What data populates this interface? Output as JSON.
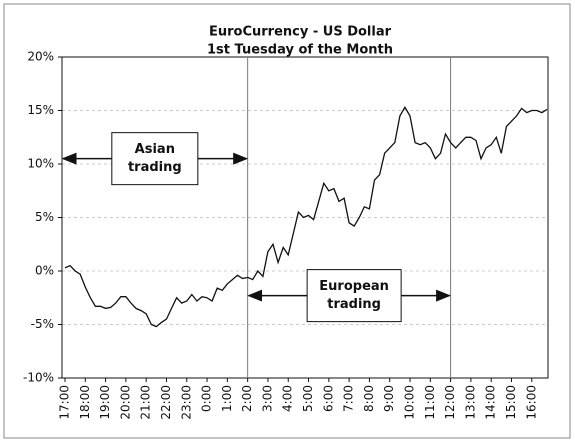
{
  "chart_data": {
    "type": "line",
    "title": "EuroCurrency - US Dollar",
    "subtitle": "1st Tuesday of the Month",
    "color": "#111111",
    "grid": true,
    "categories": [
      "17:00",
      null,
      null,
      null,
      "18:00",
      null,
      null,
      null,
      "19:00",
      null,
      null,
      null,
      "20:00",
      null,
      null,
      null,
      "21:00",
      null,
      null,
      null,
      "22:00",
      null,
      null,
      null,
      "23:00",
      null,
      null,
      null,
      "0:00",
      null,
      null,
      null,
      "1:00",
      null,
      null,
      null,
      "2:00",
      null,
      null,
      null,
      "3:00",
      null,
      null,
      null,
      "4:00",
      null,
      null,
      null,
      "5:00",
      null,
      null,
      null,
      "6:00",
      null,
      null,
      null,
      "7:00",
      null,
      null,
      null,
      "8:00",
      null,
      null,
      null,
      "9:00",
      null,
      null,
      null,
      "10:00",
      null,
      null,
      null,
      "11:00",
      null,
      null,
      null,
      "12:00",
      null,
      null,
      null,
      "13:00",
      null,
      null,
      null,
      "14:00",
      null,
      null,
      null,
      "15:00",
      null,
      null,
      null,
      "16:00",
      null,
      null,
      null
    ],
    "values": [
      0.3,
      0.5,
      0,
      -0.3,
      -1.5,
      -2.5,
      -3.3,
      -3.3,
      -3.5,
      -3.4,
      -3.0,
      -2.4,
      -2.4,
      -3.0,
      -3.5,
      -3.7,
      -4.0,
      -5.0,
      -5.2,
      -4.8,
      -4.5,
      -3.5,
      -2.5,
      -3.0,
      -2.8,
      -2.2,
      -2.8,
      -2.4,
      -2.5,
      -2.8,
      -1.6,
      -1.8,
      -1.2,
      -0.8,
      -0.4,
      -0.7,
      -0.6,
      -0.8,
      0.0,
      -0.5,
      1.8,
      2.5,
      0.8,
      2.2,
      1.5,
      3.5,
      5.5,
      5.0,
      5.2,
      4.8,
      6.5,
      8.2,
      7.5,
      7.7,
      6.5,
      6.8,
      4.5,
      4.2,
      5.0,
      6.0,
      5.8,
      8.5,
      9.0,
      11.0,
      11.5,
      12.0,
      14.5,
      15.3,
      14.5,
      12.0,
      11.8,
      12.0,
      11.5,
      10.5,
      11.0,
      12.8,
      12.0,
      11.5,
      12.0,
      12.5,
      12.5,
      12.2,
      10.5,
      11.5,
      11.8,
      12.5,
      11.0,
      13.5,
      14.0,
      14.5,
      15.2,
      14.8,
      15.0,
      15.0,
      14.8,
      15.1
    ],
    "ylim": [
      -10,
      20
    ],
    "yticks": [
      {
        "value": -10,
        "label": "-10%"
      },
      {
        "value": -5,
        "label": "-5%"
      },
      {
        "value": 0,
        "label": "0%"
      },
      {
        "value": 5,
        "label": "5%"
      },
      {
        "value": 10,
        "label": "10%"
      },
      {
        "value": 15,
        "label": "15%"
      },
      {
        "value": 20,
        "label": "20%"
      }
    ],
    "annotations": [
      {
        "lines": [
          "Asian",
          "trading"
        ],
        "from": "17:00",
        "to": "2:00"
      },
      {
        "lines": [
          "European",
          "trading"
        ],
        "from": "2:00",
        "to": "12:00"
      }
    ]
  }
}
